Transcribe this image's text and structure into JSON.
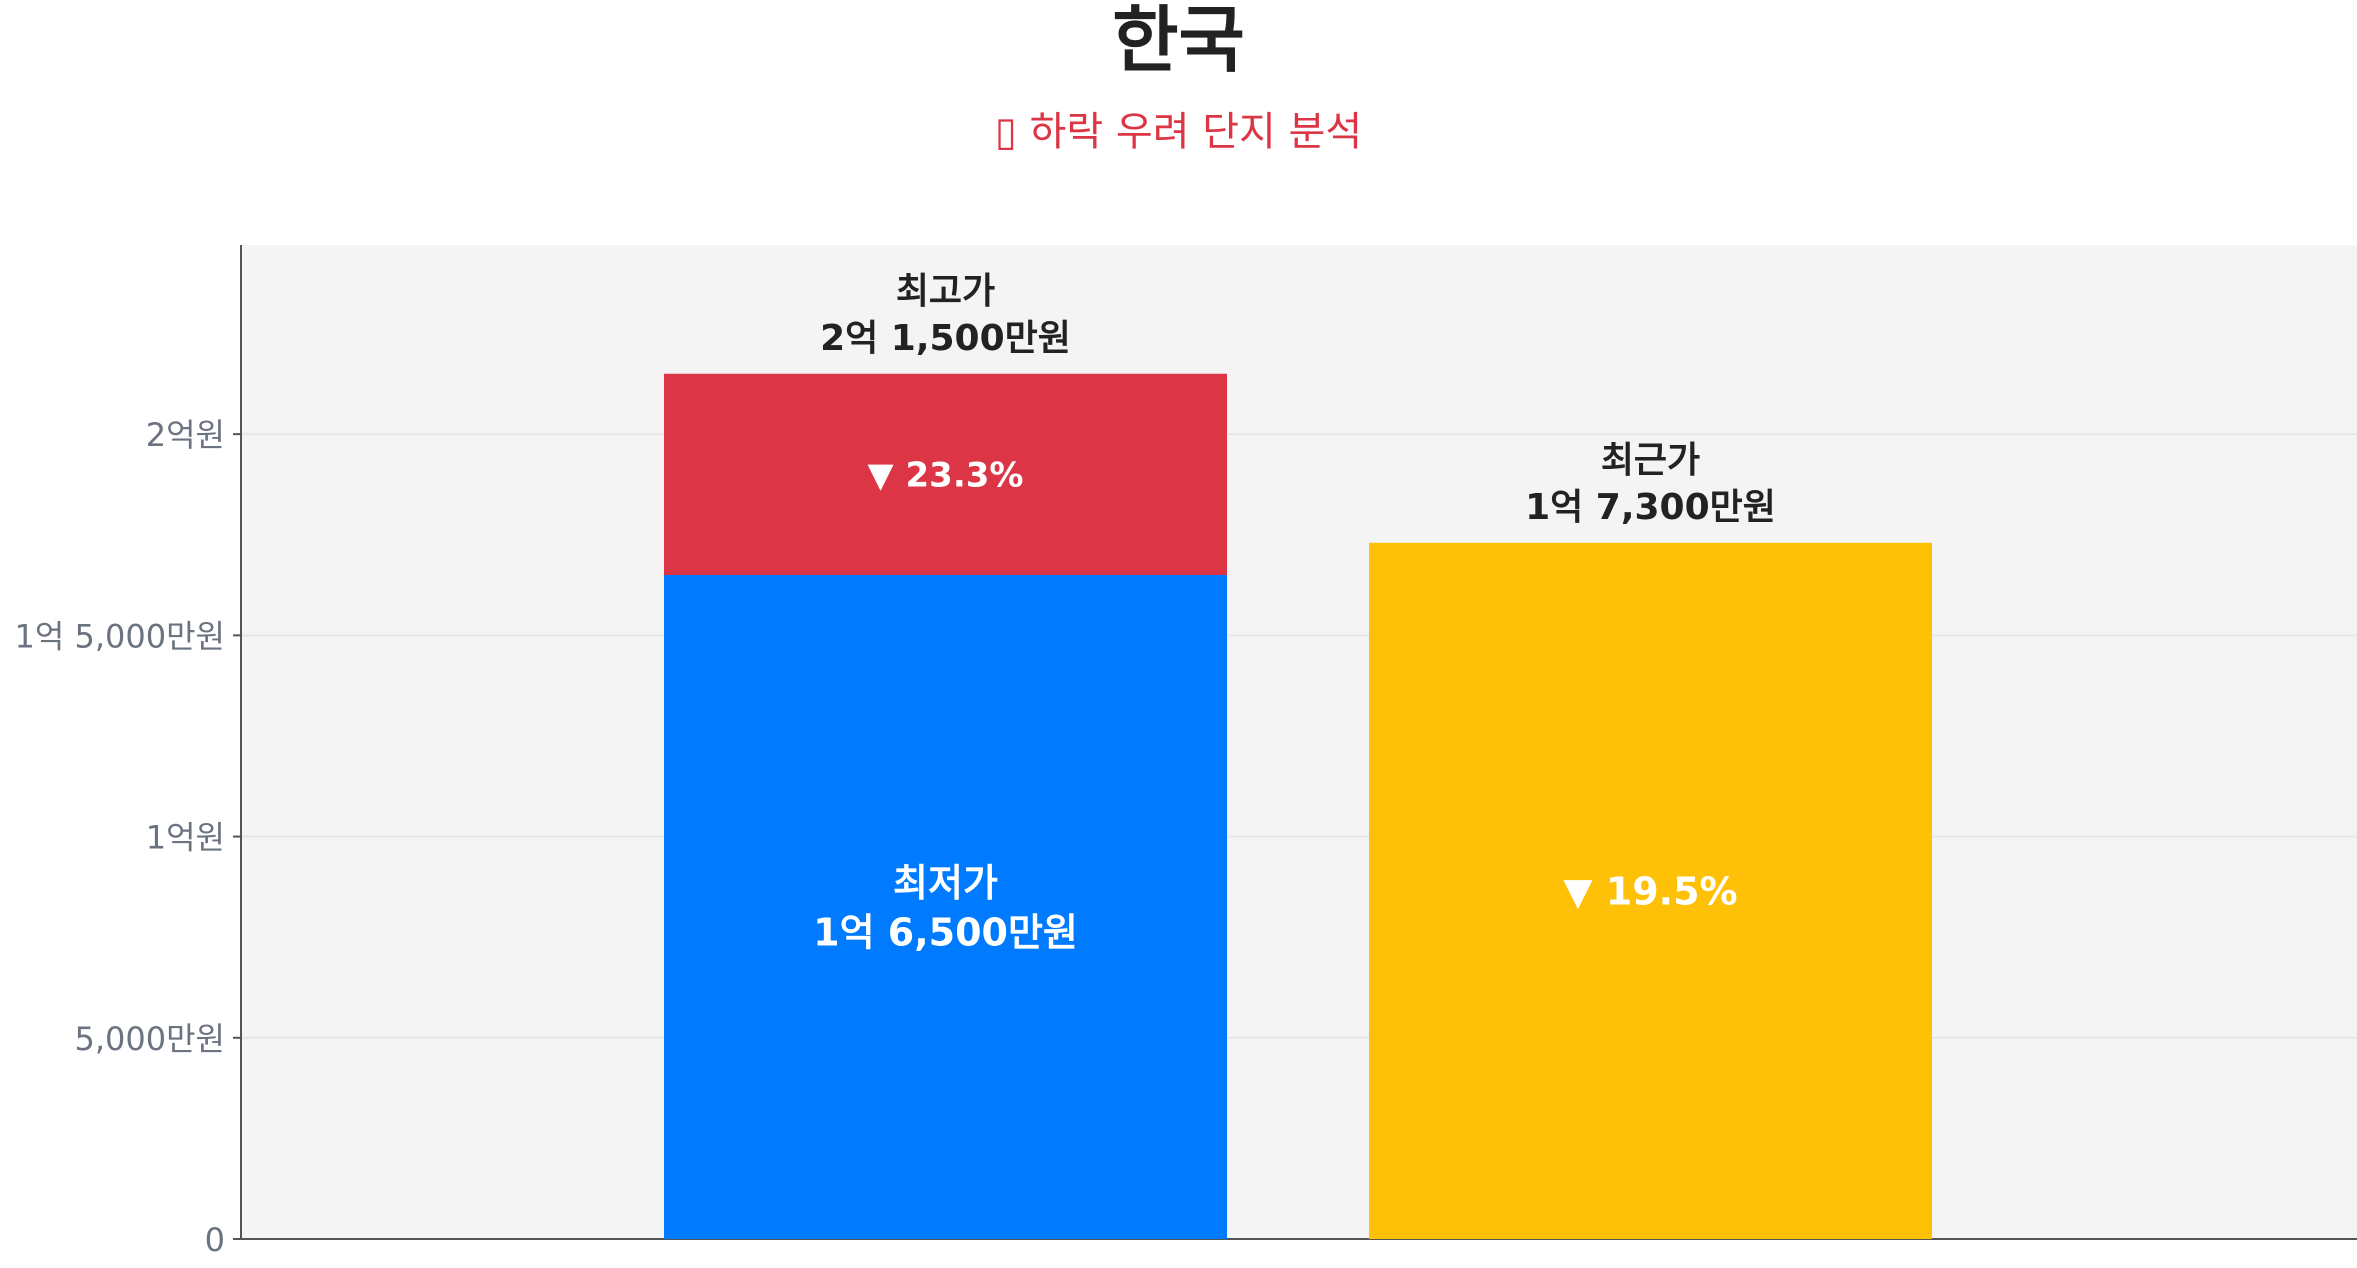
{
  "title": "한국",
  "subtitle": "▯ 하락 우려 단지 분석",
  "colors": {
    "plot_bg": "#f4f4f4",
    "grid": "#e6e6e6",
    "axis": "#555555",
    "tick_text": "#6b7280",
    "low": "#007bff",
    "drop": "#dc3545",
    "recent": "#ffc107",
    "label_dark": "#222222",
    "label_light": "#ffffff"
  },
  "chart_data": {
    "type": "bar",
    "unit": "만원",
    "ylim": [
      0,
      24700
    ],
    "y_ticks": [
      {
        "value": 0,
        "label": "0"
      },
      {
        "value": 5000,
        "label": "5,000만원"
      },
      {
        "value": 10000,
        "label": "1억원"
      },
      {
        "value": 15000,
        "label": "1억 5,000만원"
      },
      {
        "value": 20000,
        "label": "2억원"
      }
    ],
    "grid": true,
    "bars": [
      {
        "id": "price-range",
        "segments": [
          {
            "name": "최저가",
            "from": 0,
            "to": 16500,
            "color_key": "low",
            "label_lines": [
              "최저가",
              "1억 6,500만원"
            ]
          },
          {
            "name": "최고가",
            "from": 16500,
            "to": 21500,
            "color_key": "drop",
            "label_lines": [
              "▼ 23.3%"
            ]
          }
        ],
        "top_label_lines": [
          "최고가",
          "2억 1,500만원"
        ]
      },
      {
        "id": "recent",
        "segments": [
          {
            "name": "최근가",
            "from": 0,
            "to": 17300,
            "color_key": "recent",
            "label_lines": [
              "▼ 19.5%"
            ]
          }
        ],
        "top_label_lines": [
          "최근가",
          "1억 7,300만원"
        ]
      }
    ]
  }
}
